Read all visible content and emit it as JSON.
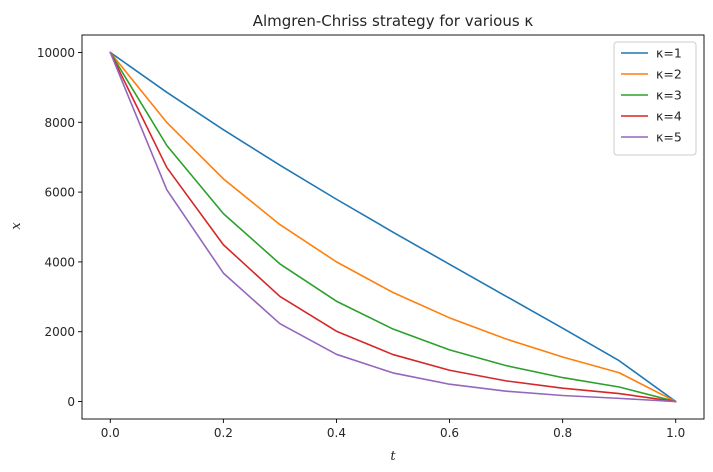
{
  "chart_data": {
    "type": "line",
    "title": "Almgren-Chriss strategy for various κ",
    "xlabel": "t",
    "ylabel": "x",
    "xlim": [
      -0.05,
      1.05
    ],
    "ylim": [
      -500,
      10500
    ],
    "xticks": [
      0.0,
      0.2,
      0.4,
      0.6,
      0.8,
      1.0
    ],
    "xtick_labels": [
      "0.0",
      "0.2",
      "0.4",
      "0.6",
      "0.8",
      "1.0"
    ],
    "yticks": [
      0,
      2000,
      4000,
      6000,
      8000,
      10000
    ],
    "ytick_labels": [
      "0",
      "2000",
      "4000",
      "6000",
      "8000",
      "10000"
    ],
    "grid": false,
    "legend_position": "top-right",
    "x": [
      0.0,
      0.1,
      0.2,
      0.3,
      0.4,
      0.5,
      0.6,
      0.7,
      0.8,
      0.9,
      1.0
    ],
    "series": [
      {
        "name": "κ=1",
        "color": "#1f77b4",
        "values": [
          10000,
          8859,
          7787,
          6770,
          5795,
          4853,
          3930,
          3016,
          2101,
          1169,
          0
        ]
      },
      {
        "name": "κ=2",
        "color": "#ff7f0e",
        "values": [
          10000,
          7994,
          6379,
          5069,
          4001,
          3124,
          2398,
          1791,
          1275,
          825,
          0
        ]
      },
      {
        "name": "κ=3",
        "color": "#2ca02c",
        "values": [
          10000,
          7335,
          5384,
          3943,
          2874,
          2077,
          1480,
          1029,
          686,
          417,
          0
        ]
      },
      {
        "name": "κ=4",
        "color": "#d62728",
        "values": [
          10000,
          6703,
          4492,
          3010,
          2015,
          1346,
          897,
          592,
          382,
          228,
          0
        ]
      },
      {
        "name": "κ=5",
        "color": "#9467bd",
        "values": [
          10000,
          6065,
          3679,
          2231,
          1353,
          820,
          496,
          297,
          173,
          91,
          0
        ]
      }
    ]
  }
}
